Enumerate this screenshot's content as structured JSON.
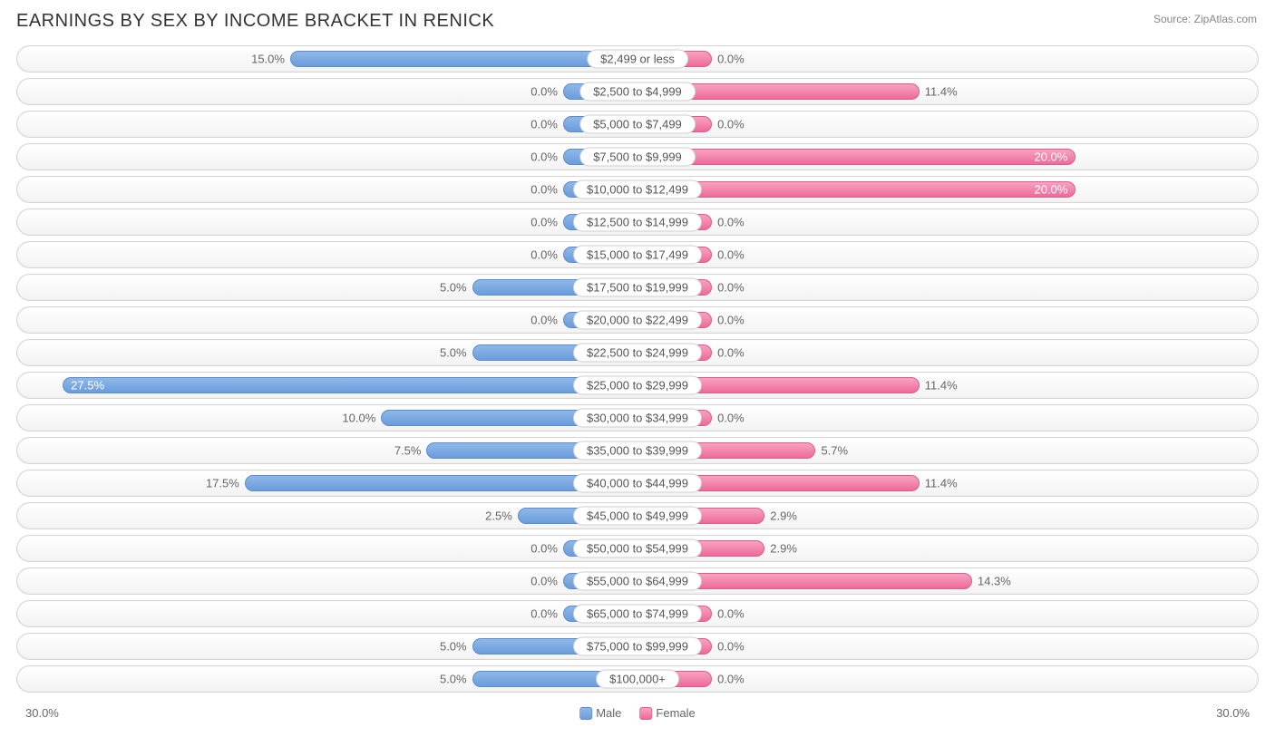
{
  "title": "EARNINGS BY SEX BY INCOME BRACKET IN RENICK",
  "source": "Source: ZipAtlas.com",
  "axis_max": 30.0,
  "axis_label": "30.0%",
  "base_bar_pct": 12.0,
  "legend": {
    "male": "Male",
    "female": "Female"
  },
  "colors": {
    "male_top": "#8fb8e8",
    "male_bottom": "#6a9cdc",
    "male_border": "#5a8ccf",
    "female_top": "#f7a3c0",
    "female_bottom": "#ee6a9a",
    "female_border": "#e15a8c",
    "track_border": "#d5d5d5",
    "text": "#666666",
    "title": "#333333"
  },
  "rows": [
    {
      "label": "$2,499 or less",
      "male": 15.0,
      "female": 0.0
    },
    {
      "label": "$2,500 to $4,999",
      "male": 0.0,
      "female": 11.4
    },
    {
      "label": "$5,000 to $7,499",
      "male": 0.0,
      "female": 0.0
    },
    {
      "label": "$7,500 to $9,999",
      "male": 0.0,
      "female": 20.0,
      "female_inside": true
    },
    {
      "label": "$10,000 to $12,499",
      "male": 0.0,
      "female": 20.0,
      "female_inside": true
    },
    {
      "label": "$12,500 to $14,999",
      "male": 0.0,
      "female": 0.0
    },
    {
      "label": "$15,000 to $17,499",
      "male": 0.0,
      "female": 0.0
    },
    {
      "label": "$17,500 to $19,999",
      "male": 5.0,
      "female": 0.0
    },
    {
      "label": "$20,000 to $22,499",
      "male": 0.0,
      "female": 0.0
    },
    {
      "label": "$22,500 to $24,999",
      "male": 5.0,
      "female": 0.0
    },
    {
      "label": "$25,000 to $29,999",
      "male": 27.5,
      "female": 11.4,
      "male_inside": true
    },
    {
      "label": "$30,000 to $34,999",
      "male": 10.0,
      "female": 0.0
    },
    {
      "label": "$35,000 to $39,999",
      "male": 7.5,
      "female": 5.7
    },
    {
      "label": "$40,000 to $44,999",
      "male": 17.5,
      "female": 11.4
    },
    {
      "label": "$45,000 to $49,999",
      "male": 2.5,
      "female": 2.9
    },
    {
      "label": "$50,000 to $54,999",
      "male": 0.0,
      "female": 2.9
    },
    {
      "label": "$55,000 to $64,999",
      "male": 0.0,
      "female": 14.3
    },
    {
      "label": "$65,000 to $74,999",
      "male": 0.0,
      "female": 0.0
    },
    {
      "label": "$75,000 to $99,999",
      "male": 5.0,
      "female": 0.0
    },
    {
      "label": "$100,000+",
      "male": 5.0,
      "female": 0.0
    }
  ]
}
